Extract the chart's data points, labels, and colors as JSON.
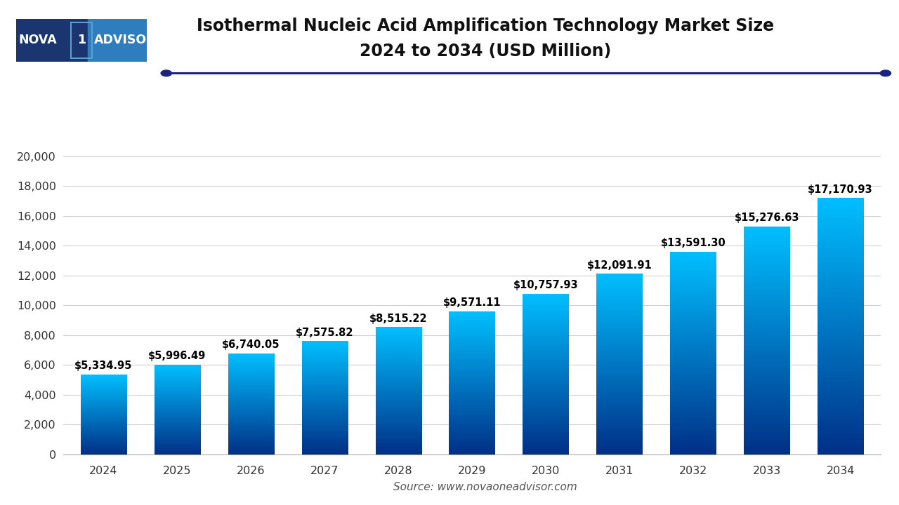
{
  "title_line1": "Isothermal Nucleic Acid Amplification Technology Market Size",
  "title_line2": "2024 to 2034 (USD Million)",
  "source": "Source: www.novaoneadvisor.com",
  "years": [
    2024,
    2025,
    2026,
    2027,
    2028,
    2029,
    2030,
    2031,
    2032,
    2033,
    2034
  ],
  "values": [
    5334.95,
    5996.49,
    6740.05,
    7575.82,
    8515.22,
    9571.11,
    10757.93,
    12091.91,
    13591.3,
    15276.63,
    17170.93
  ],
  "labels": [
    "$5,334.95",
    "$5,996.49",
    "$6,740.05",
    "$7,575.82",
    "$8,515.22",
    "$9,571.11",
    "$10,757.93",
    "$12,091.91",
    "$13,591.30",
    "$15,276.63",
    "$17,170.93"
  ],
  "ylim": [
    0,
    21000
  ],
  "yticks": [
    0,
    2000,
    4000,
    6000,
    8000,
    10000,
    12000,
    14000,
    16000,
    18000,
    20000
  ],
  "bar_top_color": "#00BFFF",
  "bar_bottom_color": "#003087",
  "title_color": "#111111",
  "grid_color": "#d0d0d0",
  "bg_color": "#ffffff",
  "line_color": "#1a237e",
  "logo_bg_left": "#1a3570",
  "logo_bg_right": "#2e7ebf",
  "logo_text_color": "#ffffff",
  "logo_box_color": "#5a9fd4",
  "title_fontsize": 17,
  "label_fontsize": 10.5,
  "tick_fontsize": 11.5,
  "source_fontsize": 11,
  "bar_width": 0.62
}
